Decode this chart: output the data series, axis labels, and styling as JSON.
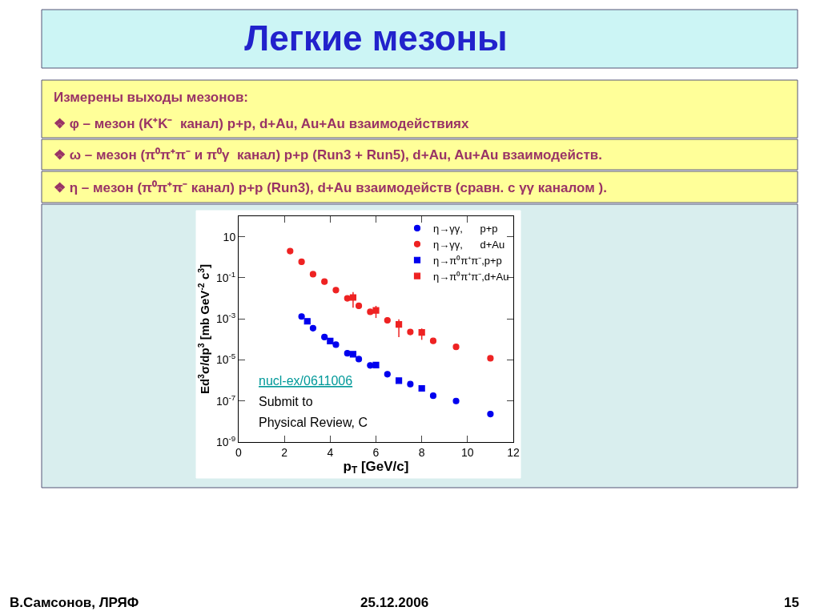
{
  "chart_data": {
    "type": "scatter",
    "title": "Легкие мезоны",
    "xlabel": "p$_{T}$ [GeV/c]",
    "ylabel": "Ed$^{3}$σ/dp$^{3}$ [mb GeV$^{-2}$ c$^{3}$]",
    "log": "y",
    "xlim": [
      0,
      12
    ],
    "xticks": [
      0,
      2,
      4,
      6,
      8,
      10,
      12
    ],
    "ylim": [
      1e-09,
      100
    ],
    "yticks": [
      {
        "value": 1e-09,
        "label": "10$^{-9}$"
      },
      {
        "value": 1e-07,
        "label": "10$^{-7}$"
      },
      {
        "value": 1e-05,
        "label": "10$^{-5}$"
      },
      {
        "value": 0.001,
        "label": "10$^{-3}$"
      },
      {
        "value": 0.1,
        "label": "10$^{-1}$"
      },
      10
    ],
    "legend": "top right",
    "series": [
      {
        "name": "η→γγ,      p+p",
        "color": "#0000ee",
        "marker": "circle",
        "x": [
          2.75,
          3.25,
          3.75,
          4.25,
          4.75,
          5.25,
          5.75,
          6.5,
          7.5,
          8.5,
          9.5,
          11
        ],
        "values": [
          0.0013,
          0.00035,
          0.00013,
          5.5e-05,
          2.1e-05,
          1.1e-05,
          5.4e-06,
          2e-06,
          6.6e-07,
          1.8e-07,
          1e-07,
          2.3e-08
        ]
      },
      {
        "name": "η→γγ,      d+Au",
        "color": "#ee2222",
        "marker": "circle",
        "x": [
          2.25,
          2.75,
          3.25,
          3.75,
          4.25,
          4.75,
          5.25,
          5.75,
          6.5,
          7.5,
          8.5,
          9.5,
          11
        ],
        "values": [
          2.0,
          0.6,
          0.15,
          0.065,
          0.025,
          0.01,
          0.0043,
          0.0022,
          0.00085,
          0.00023,
          8.5e-05,
          4.3e-05,
          1.2e-05
        ]
      },
      {
        "name": "η→π⁰π⁺π⁻,p+p",
        "color": "#0000ee",
        "marker": "square",
        "x": [
          3,
          4,
          5,
          6,
          7,
          8
        ],
        "values": [
          0.00076,
          8.3e-05,
          1.9e-05,
          5.6e-06,
          9.8e-07,
          4.1e-07
        ]
      },
      {
        "name": "η→π⁰π⁺π⁻,d+Au",
        "color": "#ee2222",
        "marker": "square",
        "x": [
          5,
          6,
          7,
          8
        ],
        "values": [
          0.011,
          0.0026,
          0.00054,
          0.00022
        ],
        "errors": [
          [
            0.0035,
            0.02
          ],
          [
            0.0011,
            0.0043
          ],
          [
            0.00013,
            0.00095
          ],
          [
            9.5e-05,
            0.00034
          ]
        ]
      }
    ],
    "annotations": [
      "Измерены выходы мезонов:",
      "❖ φ – мезон (K⁺K⁻  канал) p+p, d+Au, Au+Au взаимодействиях",
      "❖ ω – мезон (π⁰π⁺π⁻ и π⁰γ  канал) p+p (Run3 + Run5), d+Au, Au+Au взаимодейств.",
      "❖ η – мезон (π⁰π⁺π⁻ канал) p+p (Run3), d+Au взаимодейств (сравн. с γγ каналом ).",
      "nucl-ex/0611006",
      "Submit to",
      "Physical Review, C",
      "В.Самсонов, ЛРЯФ",
      "25.12.2006",
      "15"
    ]
  }
}
